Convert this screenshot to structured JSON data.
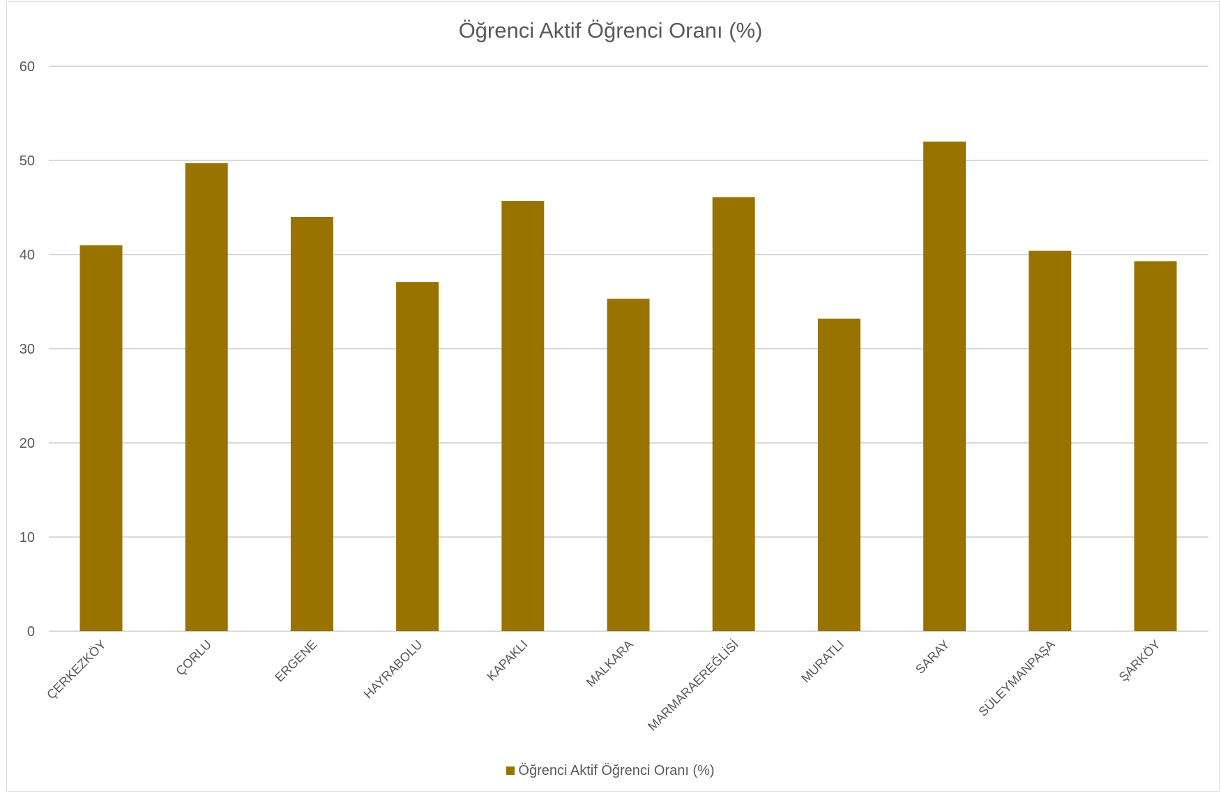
{
  "chart_data": {
    "type": "bar",
    "title": "Öğrenci Aktif Öğrenci Oranı (%)",
    "xlabel": "",
    "ylabel": "",
    "categories": [
      "ÇERKEZKÖY",
      "ÇORLU",
      "ERGENE",
      "HAYRABOLU",
      "KAPAKLI",
      "MALKARA",
      "MARMARAEREĞLİSİ",
      "MURATLI",
      "SARAY",
      "SÜLEYMANPAŞA",
      "ŞARKÖY"
    ],
    "series": [
      {
        "name": "Öğrenci Aktif Öğrenci Oranı (%)",
        "values": [
          41.0,
          49.7,
          44.0,
          37.1,
          45.7,
          35.3,
          46.1,
          33.2,
          52.0,
          40.4,
          39.3
        ],
        "color": "#997300"
      }
    ],
    "ylim": [
      0,
      60
    ],
    "yticks": [
      0,
      10,
      20,
      30,
      40,
      50,
      60
    ],
    "grid": true,
    "legend_position": "bottom"
  }
}
